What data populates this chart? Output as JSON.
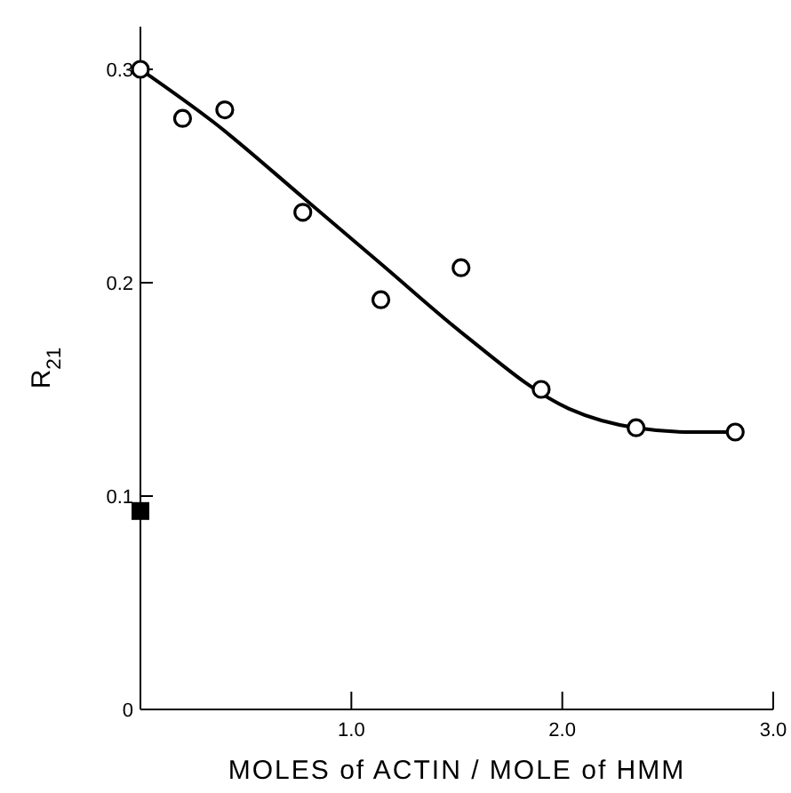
{
  "chart_data": {
    "type": "scatter",
    "xlabel": "MOLES of ACTIN / MOLE of HMM",
    "ylabel": "R$_{21}$",
    "xlim": [
      0,
      3.0
    ],
    "ylim": [
      0,
      0.32
    ],
    "xticks": [
      {
        "value": 0,
        "label": null
      },
      {
        "value": 1.0,
        "label": "1.0"
      },
      {
        "value": 2.0,
        "label": "2.0"
      },
      {
        "value": 3.0,
        "label": "3.0"
      }
    ],
    "yticks": [
      {
        "value": 0,
        "label": "0"
      },
      0.1,
      0.2,
      0.3
    ],
    "grid": false,
    "series": [
      {
        "type": "line",
        "color": "#000000",
        "marker": "none",
        "x": [
          0,
          0.35,
          0.77,
          1.15,
          1.53,
          2.03,
          2.35,
          2.62,
          2.82
        ],
        "values": [
          0.3,
          0.275,
          0.24,
          0.208,
          0.176,
          0.141,
          0.132,
          0.13,
          0.13
        ]
      },
      {
        "color": "#000000",
        "marker": "circle",
        "x": [
          0,
          0.2,
          0.4,
          0.77,
          1.14,
          1.52,
          1.9,
          2.35,
          2.82
        ],
        "values": [
          0.3,
          0.277,
          0.281,
          0.233,
          0.192,
          0.207,
          0.15,
          0.132,
          0.13
        ]
      },
      {
        "color": "#000000",
        "marker": "square",
        "x": [
          0
        ],
        "values": [
          0.093
        ]
      }
    ]
  }
}
